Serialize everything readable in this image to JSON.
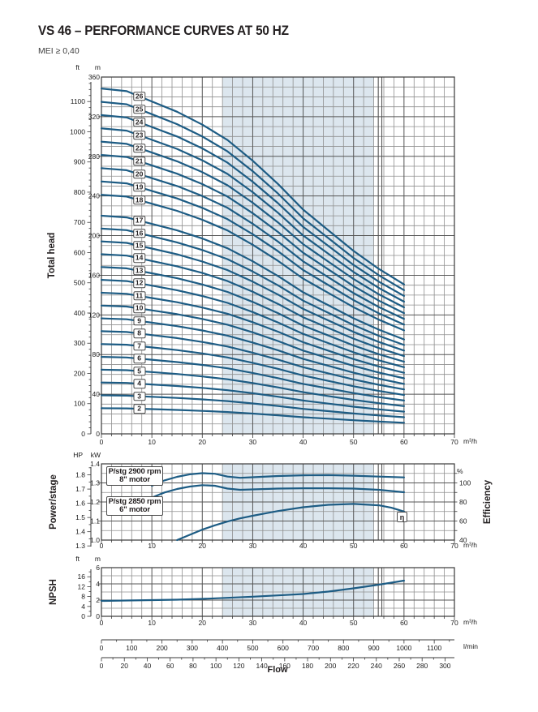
{
  "page": {
    "title": "VS 46 – PERFORMANCE CURVES AT 50 HZ",
    "subtitle": "MEI ≥ 0,40"
  },
  "labels": {
    "unit_ft": "ft",
    "unit_m": "m",
    "unit_hp": "HP",
    "unit_kw": "kW",
    "unit_pct": "%",
    "unit_m3h": "m³/h",
    "unit_lmin": "l/min",
    "flow": "Flow",
    "eta": "η",
    "box_2900_line1": "P/stg 2900 rpm",
    "box_2900_line2": "8\" motor",
    "box_2850_line1": "P/stg 2850 rpm",
    "box_2850_line2": "6\" motor"
  },
  "colors": {
    "curve": "#1d5c84",
    "band": "#dce6ee",
    "grid_minor": "#8f8f8f",
    "grid_major": "#555555",
    "border": "#3a3a3a",
    "text": "#1c1c1c"
  },
  "chart_data": [
    {
      "type": "line",
      "name": "total-head",
      "ylabel": "Total head",
      "x_unit": "m³/h",
      "xlim": [
        0,
        70
      ],
      "x_major_ticks": [
        0,
        10,
        20,
        30,
        40,
        50,
        60,
        70
      ],
      "x_minor_step": 2,
      "ylim_m": [
        0,
        360
      ],
      "m_tick_labels": [
        0,
        40,
        80,
        120,
        160,
        200,
        240,
        280,
        320,
        360
      ],
      "m_grid_step": 10,
      "ft_tick_labels": [
        0,
        100,
        200,
        300,
        400,
        500,
        600,
        700,
        800,
        900,
        1000,
        1100
      ],
      "ft_minor_step": 20,
      "duty_band_m3h": [
        24,
        54
      ],
      "band_edge_lines_m3h": [
        54.9,
        55.6
      ],
      "q_m3h": [
        0,
        5,
        10,
        15,
        20,
        25,
        30,
        35,
        40,
        45,
        50,
        55,
        60
      ],
      "per_stage_head_m_2900rpm": [
        13.4,
        13.3,
        12.9,
        12.5,
        12.0,
        11.4,
        10.6,
        9.7,
        8.7,
        7.9,
        7.1,
        6.4,
        5.8
      ],
      "stages_2900rpm": [
        18,
        19,
        20,
        21,
        22,
        23,
        24,
        25,
        26
      ],
      "stages_2850rpm": [
        2,
        3,
        4,
        5,
        6,
        7,
        8,
        9,
        10,
        11,
        12,
        13,
        14,
        15,
        16,
        17
      ],
      "head_factor_2850rpm": 0.966,
      "stage_label_at_m3h": 7.5
    },
    {
      "type": "line",
      "name": "power-efficiency",
      "ylabel_left": "Power/stage",
      "ylabel_right": "Efficiency",
      "x_unit": "m³/h",
      "xlim": [
        0,
        70
      ],
      "x_major_ticks": [
        0,
        10,
        20,
        30,
        40,
        50,
        60,
        70
      ],
      "x_minor_step": 2,
      "kw_lim": [
        1.0,
        1.4
      ],
      "kw_tick_labels": [
        "1.0",
        "1.1",
        "1.2",
        "1.3",
        "1.4"
      ],
      "kw_grid_step": 0.05,
      "hp_tick_labels": [
        "1.3",
        "1.4",
        "1.5",
        "1.6",
        "1.7",
        "1.8"
      ],
      "pct_tick_labels": [
        40,
        60,
        80,
        100
      ],
      "pct_minor_step": 10,
      "pct_kw_map": {
        "pct_at_kw1": 40,
        "pct_per_kw": 200
      },
      "duty_band_m3h": [
        24,
        54
      ],
      "band_edge_lines_m3h": [
        54.9,
        55.6
      ],
      "series": [
        {
          "name": "P/stg 2900 rpm 8\" motor",
          "unit": "kW",
          "x": [
            10,
            12.5,
            15,
            17.5,
            20,
            22.5,
            25,
            27.5,
            30,
            35,
            40,
            45,
            50,
            55,
            60
          ],
          "y": [
            1.285,
            1.313,
            1.332,
            1.345,
            1.351,
            1.348,
            1.333,
            1.327,
            1.33,
            1.336,
            1.34,
            1.341,
            1.338,
            1.333,
            1.329
          ]
        },
        {
          "name": "P/stg 2850 rpm 6\" motor",
          "unit": "kW",
          "x": [
            10,
            12.5,
            15,
            17.5,
            20,
            22.5,
            25,
            27.5,
            30,
            35,
            40,
            45,
            50,
            55,
            60
          ],
          "y": [
            1.223,
            1.25,
            1.268,
            1.281,
            1.288,
            1.285,
            1.27,
            1.264,
            1.266,
            1.27,
            1.272,
            1.272,
            1.27,
            1.264,
            1.251
          ]
        },
        {
          "name": "Efficiency η",
          "unit": "%",
          "x": [
            15,
            17.5,
            20,
            22.5,
            25,
            27.5,
            30,
            32.5,
            35,
            40,
            45,
            50,
            55,
            57.5,
            60
          ],
          "y": [
            40,
            45.5,
            51,
            55.5,
            59.5,
            62.8,
            65.5,
            68,
            70.5,
            74.5,
            77,
            78,
            76.5,
            74,
            70
          ]
        }
      ]
    },
    {
      "type": "line",
      "name": "npsh",
      "ylabel": "NPSH",
      "x_unit": "m³/h",
      "xlim": [
        0,
        70
      ],
      "x_major_ticks": [
        0,
        10,
        20,
        30,
        40,
        50,
        60,
        70
      ],
      "x_minor_step": 2,
      "m_lim": [
        0,
        6
      ],
      "m_tick_labels": [
        0,
        2,
        4,
        6
      ],
      "m_grid_step": 1,
      "ft_tick_labels": [
        0,
        4,
        8,
        12,
        16
      ],
      "ft_minor_step": 2,
      "duty_band_m3h": [
        24,
        54
      ],
      "band_edge_lines_m3h": [
        54.9,
        55.6
      ],
      "series": [
        {
          "name": "NPSH",
          "unit": "m",
          "x": [
            0,
            5,
            10,
            15,
            20,
            25,
            30,
            35,
            40,
            45,
            50,
            55,
            60
          ],
          "y": [
            1.9,
            1.95,
            2.0,
            2.05,
            2.15,
            2.28,
            2.42,
            2.58,
            2.75,
            3.05,
            3.45,
            3.9,
            4.4
          ]
        }
      ]
    }
  ],
  "flow_scales": {
    "lmin": {
      "ticks": [
        0,
        100,
        200,
        300,
        400,
        500,
        600,
        700,
        800,
        900,
        1000,
        1100
      ],
      "minor_step": 50,
      "lmin_per_m3h": 16.6667
    },
    "usgpm": {
      "ticks": [
        0,
        20,
        40,
        60,
        80,
        100,
        120,
        140,
        160,
        180,
        200,
        220,
        240,
        260,
        280,
        300
      ],
      "minor_step": 10,
      "m3h_per_gpm": 0.22712
    }
  }
}
